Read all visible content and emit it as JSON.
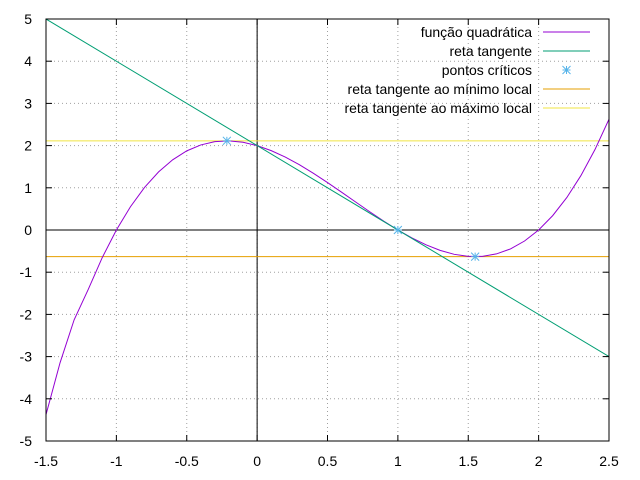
{
  "chart_data": {
    "type": "line",
    "title": "",
    "xlabel": "",
    "ylabel": "",
    "xlim": [
      -1.5,
      2.5
    ],
    "ylim": [
      -5,
      5
    ],
    "x_ticks": [
      -1.5,
      -1,
      -0.5,
      0,
      0.5,
      1,
      1.5,
      2,
      2.5
    ],
    "x_tick_labels": [
      "-1.5",
      "-1",
      "-0.5",
      "0",
      "0.5",
      "1",
      "1.5",
      "2",
      "2.5"
    ],
    "y_ticks": [
      -5,
      -4,
      -3,
      -2,
      -1,
      0,
      1,
      2,
      3,
      4,
      5
    ],
    "y_tick_labels": [
      "-5",
      "-4",
      "-3",
      "-2",
      "-1",
      "0",
      "1",
      "2",
      "3",
      "4",
      "5"
    ],
    "grid": true,
    "zero_axes": true,
    "legend_position": "top-right",
    "series": [
      {
        "name": "função quadrática",
        "color": "#9400d3",
        "kind": "line",
        "x": [
          -1.5,
          -1.4,
          -1.3,
          -1.2,
          -1.1,
          -1.0,
          -0.9,
          -0.8,
          -0.7,
          -0.6,
          -0.5,
          -0.4,
          -0.3,
          -0.2,
          -0.1,
          0.0,
          0.1,
          0.2,
          0.3,
          0.4,
          0.5,
          0.6,
          0.7,
          0.8,
          0.9,
          1.0,
          1.1,
          1.2,
          1.3,
          1.4,
          1.5,
          1.6,
          1.7,
          1.8,
          1.9,
          2.0,
          2.1,
          2.2,
          2.3,
          2.4,
          2.5
        ],
        "y": [
          -4.375,
          -3.144,
          -2.127,
          -1.408,
          -0.651,
          0.0,
          0.551,
          1.008,
          1.377,
          1.664,
          1.875,
          2.016,
          2.093,
          2.112,
          2.079,
          2.0,
          1.881,
          1.728,
          1.547,
          1.344,
          1.125,
          0.896,
          0.663,
          0.432,
          0.209,
          0.0,
          -0.189,
          -0.352,
          -0.483,
          -0.576,
          -0.625,
          -0.624,
          -0.567,
          -0.448,
          -0.261,
          0.0,
          0.341,
          0.768,
          1.287,
          1.904,
          2.625
        ]
      },
      {
        "name": "reta tangente",
        "color": "#009e73",
        "kind": "line",
        "x": [
          -1.5,
          2.5
        ],
        "y": [
          5.0,
          -3.0
        ]
      },
      {
        "name": "pontos críticos",
        "color": "#56b4e9",
        "kind": "points",
        "x": [
          -0.215,
          1.0,
          1.549
        ],
        "y": [
          2.113,
          0.0,
          -0.631
        ]
      },
      {
        "name": "reta tangente ao mínimo local",
        "color": "#e69f00",
        "kind": "hline",
        "y": -0.631
      },
      {
        "name": "reta tangente ao máximo local",
        "color": "#f0e442",
        "kind": "hline",
        "y": 2.113
      }
    ]
  }
}
